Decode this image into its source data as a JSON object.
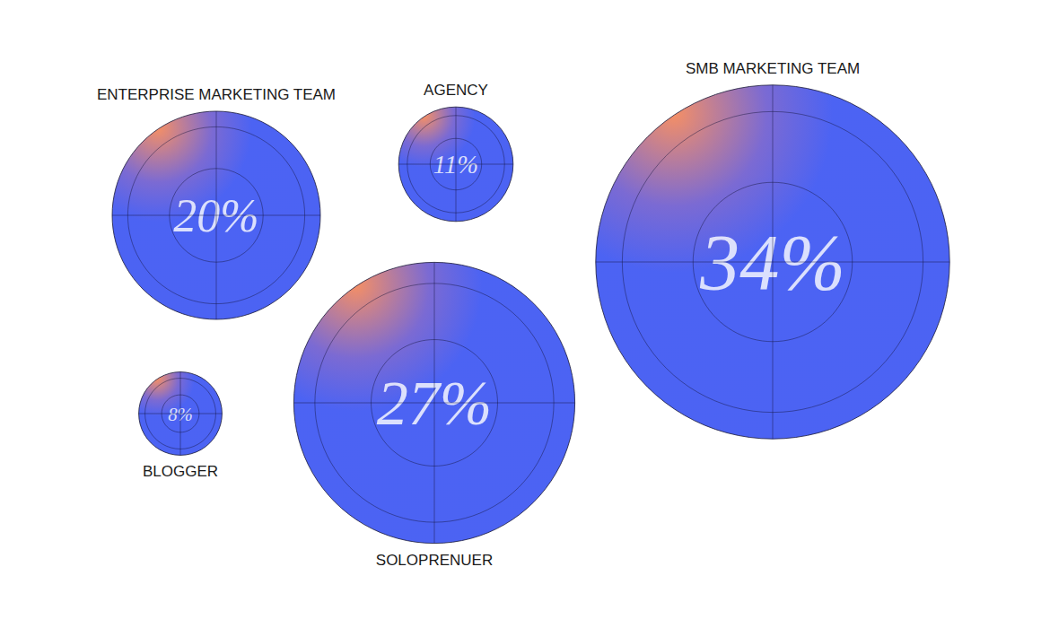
{
  "chart_data": {
    "type": "bubble",
    "categories": [
      "ENTERPRISE MARKETING TEAM",
      "AGENCY",
      "SMB MARKETING TEAM",
      "BLOGGER",
      "SOLOPRENUER"
    ],
    "values": [
      20,
      11,
      34,
      8,
      27
    ],
    "value_labels": [
      "20%",
      "11%",
      "34%",
      "8%",
      "27%"
    ],
    "color": "#1f3cf0",
    "data_labels": true
  }
}
